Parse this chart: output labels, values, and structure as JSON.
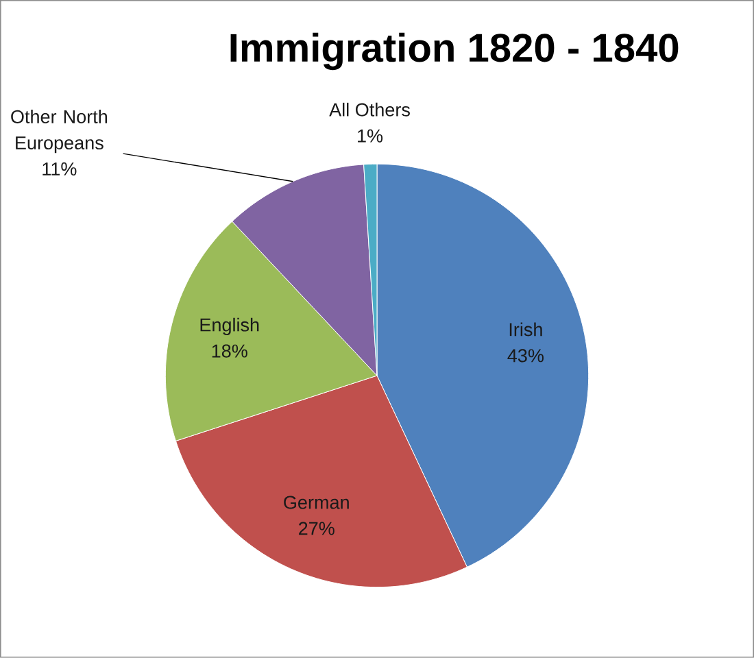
{
  "chart_data": {
    "type": "pie",
    "title": "Immigration 1820 - 1840",
    "categories": [
      "Irish",
      "German",
      "English",
      "Other North Europeans",
      "All Others"
    ],
    "values": [
      43,
      27,
      18,
      11,
      1
    ],
    "value_labels": [
      "43%",
      "27%",
      "18%",
      "11%",
      "1%"
    ],
    "colors": [
      "#4f81bd",
      "#c0504d",
      "#9bbb59",
      "#8064a2",
      "#4bacc6"
    ]
  }
}
